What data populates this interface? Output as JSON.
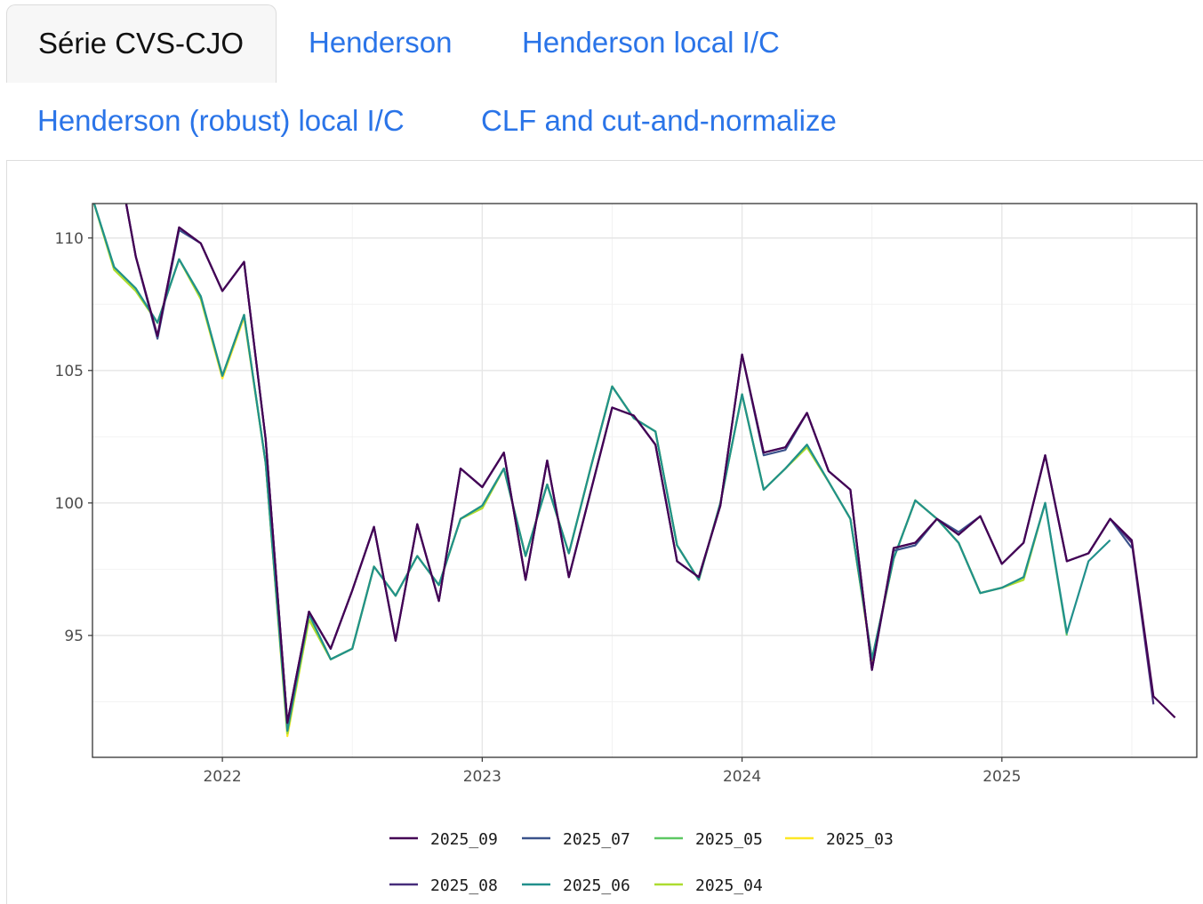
{
  "tabs": [
    {
      "label": "Série CVS-CJO",
      "active": true
    },
    {
      "label": "Henderson",
      "active": false
    },
    {
      "label": "Henderson local I/C",
      "active": false
    },
    {
      "label": "Henderson (robust) local I/C",
      "active": false
    },
    {
      "label": "CLF and cut-and-normalize",
      "active": false
    }
  ],
  "colors": {
    "tab_link": "#2a74e8",
    "tab_active_text": "#111111"
  },
  "chart_data": {
    "type": "line",
    "title": "",
    "xlabel": "",
    "ylabel": "",
    "x_range": [
      "2021-07",
      "2025-10"
    ],
    "ylim": [
      90.4,
      111.3
    ],
    "x_ticks": [
      "2022",
      "2023",
      "2024",
      "2025"
    ],
    "y_ticks": [
      95,
      100,
      105,
      110
    ],
    "grid": true,
    "legend_position": "bottom",
    "series": [
      {
        "name": "2025_09",
        "color": "#440154",
        "start": "2021-07",
        "values": [
          112.5,
          113.8,
          109.3,
          106.3,
          110.4,
          109.8,
          108.0,
          109.1,
          102.4,
          91.7,
          95.9,
          94.5,
          96.7,
          99.1,
          94.8,
          99.2,
          96.3,
          101.3,
          100.6,
          101.9,
          97.1,
          101.6,
          97.2,
          100.4,
          103.6,
          103.3,
          102.2,
          97.8,
          97.2,
          99.9,
          105.6,
          101.9,
          102.1,
          103.4,
          101.2,
          100.5,
          93.7,
          98.3,
          98.5,
          99.4,
          98.8,
          99.5,
          97.7,
          98.5,
          101.8,
          97.8,
          98.1,
          99.4,
          98.6,
          92.7,
          91.9
        ]
      },
      {
        "name": "2025_08",
        "color": "#472d7b",
        "start": "2021-07",
        "values": [
          112.5,
          113.8,
          109.3,
          106.3,
          110.4,
          109.8,
          108.0,
          109.1,
          102.4,
          91.7,
          95.9,
          94.5,
          96.7,
          99.1,
          94.8,
          99.2,
          96.3,
          101.3,
          100.6,
          101.9,
          97.1,
          101.6,
          97.2,
          100.4,
          103.6,
          103.3,
          102.2,
          97.8,
          97.2,
          99.9,
          105.6,
          101.9,
          102.1,
          103.4,
          101.2,
          100.5,
          93.7,
          98.3,
          98.5,
          99.4,
          98.8,
          99.5,
          97.7,
          98.5,
          101.8,
          97.8,
          98.1,
          99.4,
          98.5,
          92.4
        ]
      },
      {
        "name": "2025_07",
        "color": "#3b528b",
        "start": "2021-07",
        "values": [
          112.5,
          113.8,
          109.3,
          106.2,
          110.3,
          109.8,
          108.0,
          109.1,
          102.4,
          91.7,
          95.9,
          94.5,
          96.7,
          99.1,
          94.8,
          99.2,
          96.3,
          101.3,
          100.6,
          101.9,
          97.1,
          101.6,
          97.2,
          100.4,
          103.6,
          103.3,
          102.2,
          97.8,
          97.2,
          99.9,
          105.6,
          101.8,
          102.0,
          103.4,
          101.2,
          100.5,
          93.7,
          98.2,
          98.4,
          99.4,
          98.9,
          99.5,
          97.7,
          98.5,
          101.8,
          97.8,
          98.1,
          99.4,
          98.3
        ]
      },
      {
        "name": "2025_06",
        "color": "#21908c",
        "start": "2021-07",
        "values": [
          111.5,
          108.9,
          108.1,
          106.8,
          109.2,
          107.8,
          104.8,
          107.1,
          101.5,
          91.4,
          95.8,
          94.1,
          94.5,
          97.6,
          96.5,
          98.0,
          96.9,
          99.4,
          99.9,
          101.3,
          98.0,
          100.7,
          98.1,
          101.3,
          104.4,
          103.2,
          102.7,
          98.4,
          97.1,
          100.0,
          104.1,
          100.5,
          101.3,
          102.2,
          100.8,
          99.4,
          94.1,
          97.9,
          100.1,
          99.4,
          98.5,
          96.6,
          96.8,
          97.2,
          100.0,
          95.1,
          97.8,
          98.6
        ]
      },
      {
        "name": "2025_05",
        "color": "#5dc863",
        "start": "2021-07",
        "values": [
          111.5,
          108.9,
          108.1,
          106.8,
          109.2,
          107.8,
          104.8,
          107.1,
          101.5,
          91.4,
          95.8,
          94.1,
          94.5,
          97.6,
          96.5,
          98.0,
          96.9,
          99.4,
          99.9,
          101.3,
          98.0,
          100.7,
          98.1,
          101.3,
          104.4,
          103.2,
          102.7,
          98.4,
          97.1,
          100.0,
          104.1,
          100.5,
          101.3,
          102.2,
          100.8,
          99.4,
          94.1,
          97.9,
          100.1,
          99.4,
          98.5,
          96.6,
          96.8,
          97.2,
          100.0,
          95.0
        ]
      },
      {
        "name": "2025_04",
        "color": "#addc30",
        "start": "2021-07",
        "values": [
          111.5,
          108.8,
          108.0,
          106.8,
          109.2,
          107.7,
          104.8,
          107.1,
          101.5,
          91.3,
          95.6,
          94.1,
          94.5,
          97.6,
          96.5,
          98.0,
          96.9,
          99.4,
          99.8,
          101.3,
          98.0,
          100.7,
          98.1,
          101.3,
          104.4,
          103.2,
          102.7,
          98.4,
          97.1,
          100.0,
          104.1,
          100.5,
          101.3,
          102.1,
          100.8,
          99.4,
          94.1,
          97.9,
          100.1,
          99.4,
          98.5,
          96.6,
          96.8,
          97.1,
          100.0
        ]
      },
      {
        "name": "2025_03",
        "color": "#fde725",
        "start": "2021-07",
        "values": [
          111.5,
          108.8,
          108.0,
          106.8,
          109.2,
          107.7,
          104.7,
          107.0,
          101.5,
          91.2,
          95.6,
          94.1,
          94.5,
          97.6,
          96.5,
          98.0,
          96.9,
          99.4,
          99.8,
          101.3,
          98.0,
          100.7,
          98.1,
          101.3,
          104.4,
          103.2,
          102.7,
          98.4,
          97.1,
          100.0,
          104.1,
          100.5,
          101.3,
          102.1,
          100.8,
          99.4,
          94.0,
          97.9,
          100.1,
          99.4,
          98.5,
          96.6,
          96.8,
          97.1
        ]
      }
    ],
    "legend_rows": [
      [
        "2025_09",
        "2025_07",
        "2025_05",
        "2025_03"
      ],
      [
        "2025_08",
        "2025_06",
        "2025_04"
      ]
    ]
  }
}
